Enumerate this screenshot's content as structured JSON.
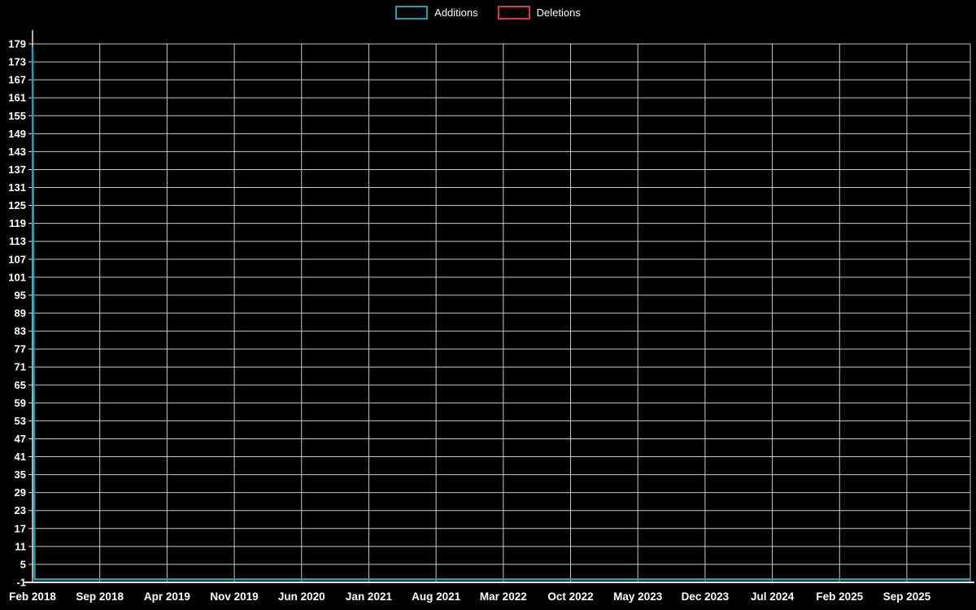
{
  "legend": {
    "items": [
      {
        "label": "Additions",
        "color": "#17a2b8"
      },
      {
        "label": "Deletions",
        "color": "#dc3545"
      }
    ]
  },
  "chart_data": {
    "type": "line",
    "title": "",
    "legend_position": "top-center",
    "background_color": "#000000",
    "text_color": "#ffffff",
    "grid": true,
    "grid_color": "#c9c9c9",
    "axis_color": "#e8e8e8",
    "x_tick_labels": [
      "Feb 2018",
      "Sep 2018",
      "Apr 2019",
      "Nov 2019",
      "Jun 2020",
      "Jan 2021",
      "Aug 2021",
      "Mar 2022",
      "Oct 2022",
      "May 2023",
      "Dec 2023",
      "Jul 2024",
      "Feb 2025",
      "Sep 2025"
    ],
    "x_unit": "tick-index, one tick every 7 months, fractional indices allowed",
    "y_axis": {
      "min": -1,
      "max": 179,
      "step": 6
    },
    "y_tick_labels": [
      -1,
      5,
      11,
      17,
      23,
      29,
      35,
      41,
      47,
      53,
      59,
      65,
      71,
      77,
      83,
      89,
      95,
      101,
      107,
      113,
      119,
      125,
      131,
      137,
      143,
      149,
      155,
      161,
      167,
      173,
      179
    ],
    "series": [
      {
        "name": "Additions",
        "color": "#17a2b8",
        "points": [
          [
            0,
            178
          ],
          [
            0.03,
            0
          ],
          [
            13.94,
            0
          ]
        ]
      },
      {
        "name": "Deletions",
        "color": "#dc3545",
        "points": [
          [
            0,
            0
          ],
          [
            13.94,
            0
          ]
        ]
      }
    ]
  }
}
